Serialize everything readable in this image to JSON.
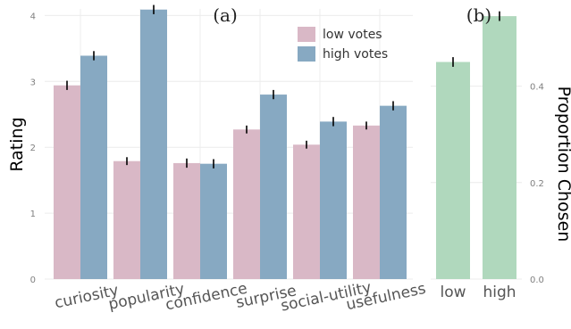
{
  "chart_data": [
    {
      "type": "bar",
      "panel_label": "(a)",
      "ylabel": "Rating",
      "ylim": [
        0,
        4.1
      ],
      "yticks": [
        "0",
        "1",
        "2",
        "3",
        "4"
      ],
      "grid": true,
      "legend_position": "top-right",
      "categories": [
        "curiosity",
        "popularity",
        "confidence",
        "surprise",
        "social-utility",
        "usefulness"
      ],
      "series": [
        {
          "name": "low votes",
          "color": "#d9b8c6",
          "values": [
            2.94,
            1.79,
            1.76,
            2.27,
            2.04,
            2.33
          ],
          "errors": [
            0.07,
            0.06,
            0.07,
            0.06,
            0.06,
            0.06
          ]
        },
        {
          "name": "high votes",
          "color": "#87a9c2",
          "values": [
            3.39,
            4.09,
            1.75,
            2.8,
            2.39,
            2.63
          ],
          "errors": [
            0.07,
            0.07,
            0.07,
            0.07,
            0.07,
            0.07
          ]
        }
      ]
    },
    {
      "type": "bar",
      "panel_label": "(b)",
      "ylabel": "Proportion Chosen",
      "ylim": [
        0,
        0.56
      ],
      "yticks": [
        "0.0",
        "0.2",
        "0.4"
      ],
      "y_axis_side": "right",
      "grid": true,
      "categories": [
        "low",
        "high"
      ],
      "series": [
        {
          "color": "#b0d8bd",
          "values": [
            0.45,
            0.545
          ],
          "errors": [
            0.01,
            0.01
          ]
        }
      ]
    }
  ]
}
